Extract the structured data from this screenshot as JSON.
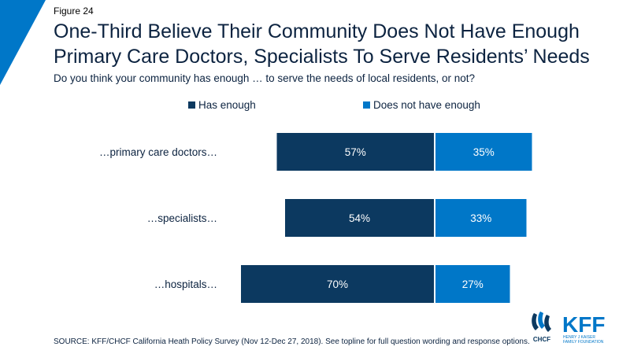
{
  "figure_label": "Figure 24",
  "title_line1": "One-Third Believe Their Community Does Not Have Enough",
  "title_line2": "Primary Care Doctors, Specialists To Serve Residents’ Needs",
  "subtitle": "Do you think your community has enough … to serve the needs of local residents, or not?",
  "source": "SOURCE: KFF/CHCF California Heath Policy Survey (Nov 12-Dec 27, 2018). See topline for full question wording and response options.",
  "logos": {
    "chcf": "CHCF",
    "kff": "KFF",
    "kff_sub1": "HENRY J KAISER",
    "kff_sub2": "FAMILY FOUNDATION"
  },
  "colors": {
    "has_enough": "#0c3960",
    "not_enough": "#0077c8",
    "text": "#0c2340",
    "accent": "#0077c8"
  },
  "chart_data": {
    "type": "bar",
    "orientation": "horizontal-diverging",
    "title": "",
    "categories": [
      "…primary care doctors…",
      "…specialists…",
      "…hospitals…"
    ],
    "series": [
      {
        "name": "Has enough",
        "values": [
          57,
          54,
          70
        ],
        "labels": [
          "57%",
          "54%",
          "70%"
        ],
        "color": "#0c3960"
      },
      {
        "name": "Does not have enough",
        "values": [
          35,
          33,
          27
        ],
        "labels": [
          "35%",
          "33%",
          "27%"
        ],
        "color": "#0077c8"
      }
    ],
    "legend_position": "top",
    "grid": false
  }
}
